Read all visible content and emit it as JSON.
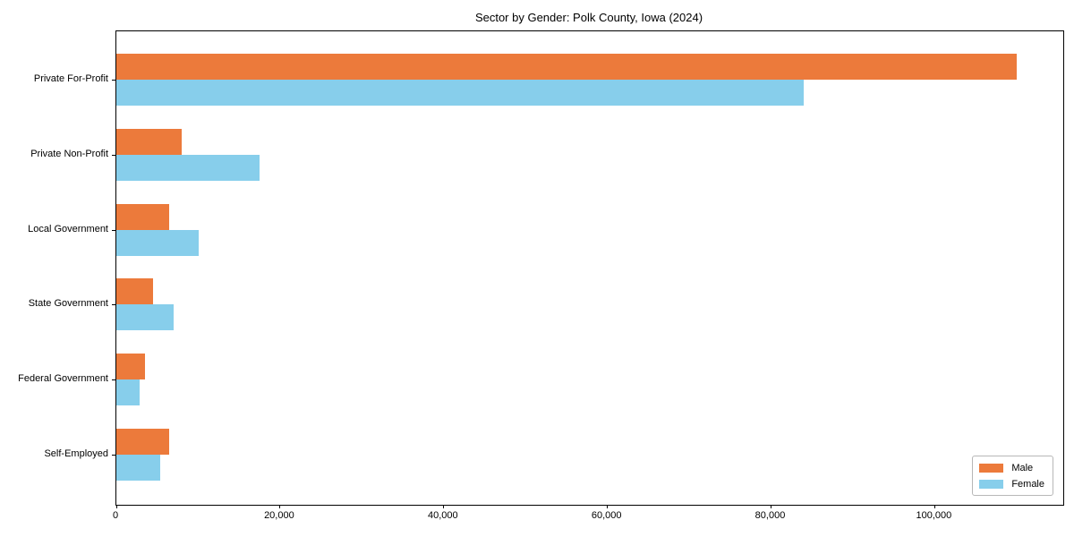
{
  "chart_data": {
    "type": "bar",
    "orientation": "horizontal",
    "title": "Sector by Gender: Polk County, Iowa (2024)",
    "xlabel": "",
    "ylabel": "",
    "categories": [
      "Private For-Profit",
      "Private Non-Profit",
      "Local Government",
      "State Government",
      "Federal Government",
      "Self-Employed"
    ],
    "series": [
      {
        "name": "Male",
        "color": "#ec7a3b",
        "values": [
          110000,
          8000,
          6500,
          4500,
          3500,
          6500
        ]
      },
      {
        "name": "Female",
        "color": "#87ceeb",
        "values": [
          84000,
          17500,
          10100,
          7000,
          2800,
          5400
        ]
      }
    ],
    "xlim": [
      0,
      115700
    ],
    "xticks": [
      0,
      20000,
      40000,
      60000,
      80000,
      100000
    ],
    "xtick_labels": [
      "0",
      "20,000",
      "40,000",
      "60,000",
      "80,000",
      "100,000"
    ],
    "legend_position": "lower right",
    "grid": false,
    "plot_border_color": "#000000",
    "background_color": "#ffffff"
  }
}
